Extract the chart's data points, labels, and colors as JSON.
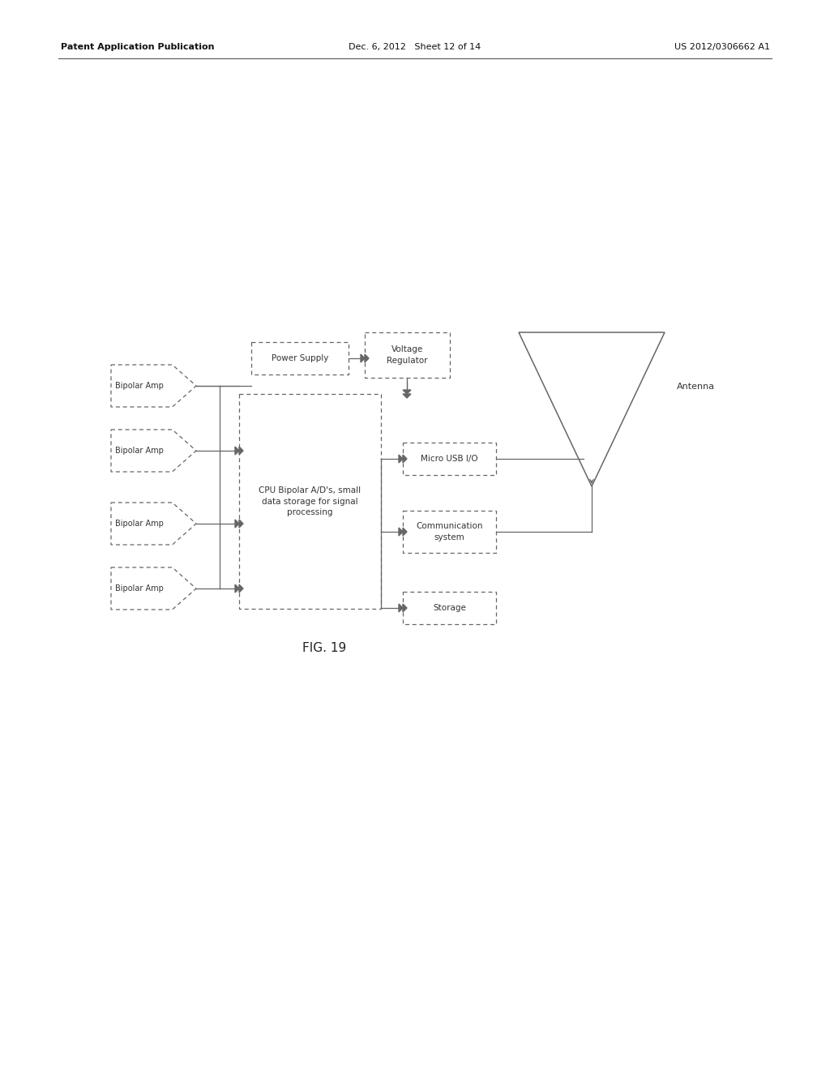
{
  "bg_color": "#ffffff",
  "header_left": "Patent Application Publication",
  "header_center": "Dec. 6, 2012   Sheet 12 of 14",
  "header_right": "US 2012/0306662 A1",
  "figure_label": "FIG. 19",
  "line_color": "#666666",
  "text_color": "#333333"
}
